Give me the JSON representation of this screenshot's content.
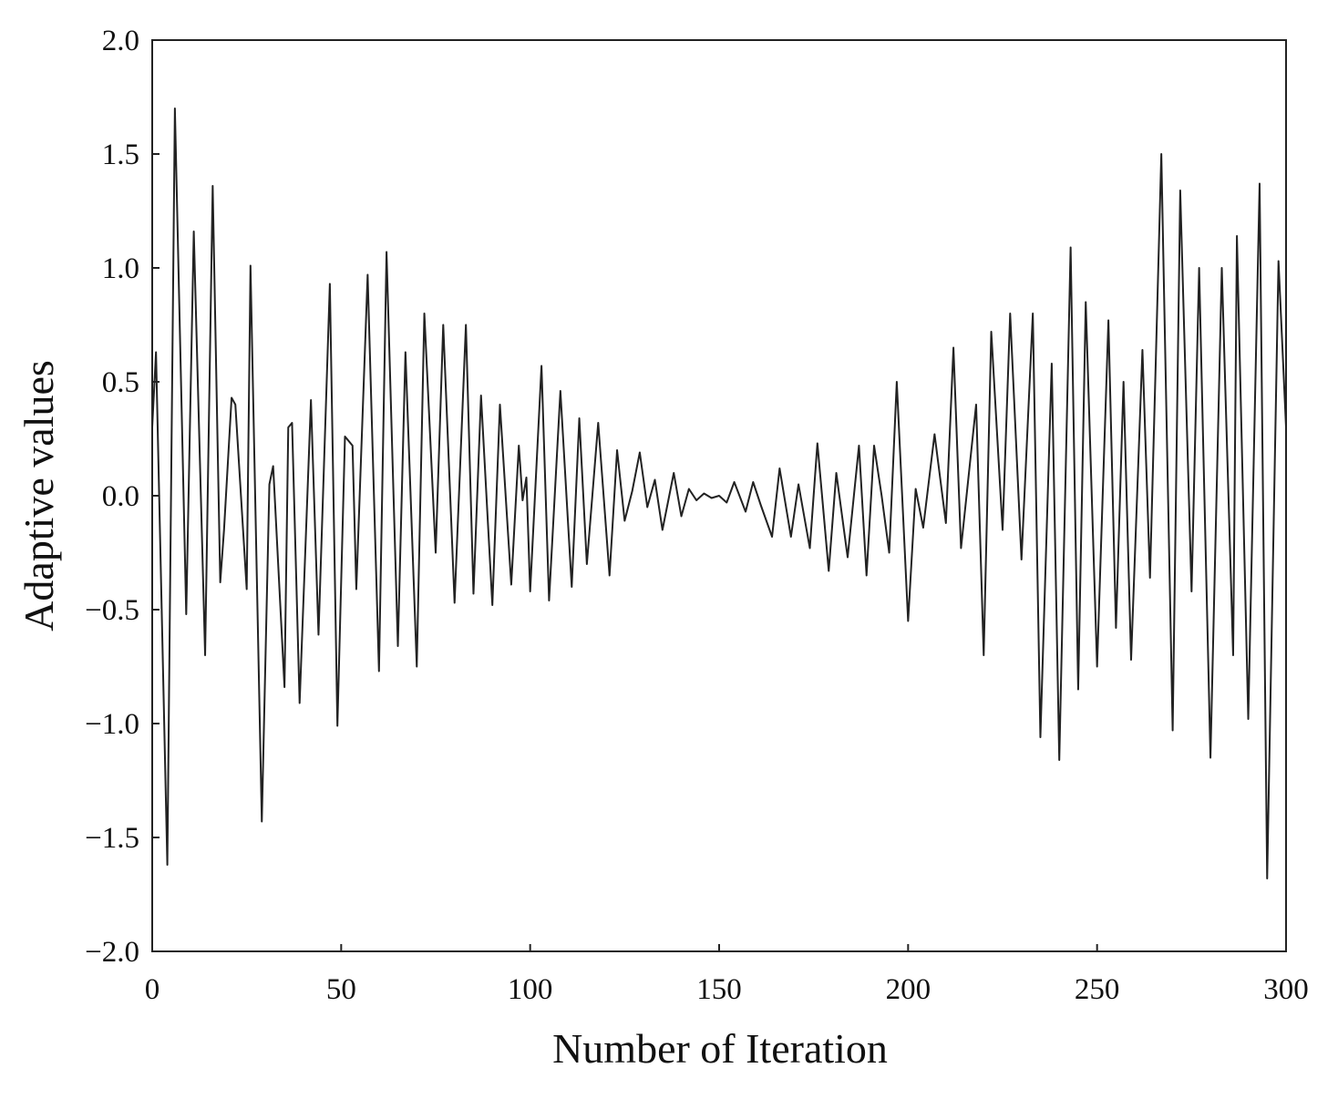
{
  "chart_data": {
    "type": "line",
    "x_label": "Number of Iteration",
    "y_label": "Adaptive values",
    "x": [
      0,
      1,
      4,
      6,
      9,
      11,
      14,
      16,
      18,
      19,
      21,
      22,
      25,
      26,
      29,
      31,
      32,
      35,
      36,
      37,
      39,
      42,
      44,
      47,
      49,
      51,
      53,
      54,
      57,
      60,
      62,
      65,
      67,
      70,
      72,
      75,
      77,
      80,
      83,
      85,
      87,
      90,
      92,
      95,
      97,
      98,
      99,
      100,
      103,
      105,
      108,
      111,
      113,
      115,
      118,
      121,
      123,
      125,
      127,
      129,
      131,
      133,
      135,
      138,
      140,
      142,
      144,
      146,
      148,
      150,
      152,
      154,
      157,
      159,
      161,
      164,
      166,
      169,
      171,
      174,
      176,
      179,
      181,
      184,
      187,
      189,
      191,
      193,
      195,
      197,
      200,
      202,
      204,
      207,
      210,
      212,
      214,
      218,
      220,
      222,
      225,
      227,
      230,
      233,
      235,
      238,
      240,
      243,
      245,
      247,
      250,
      253,
      255,
      257,
      259,
      262,
      264,
      267,
      270,
      272,
      275,
      277,
      280,
      283,
      286,
      287,
      290,
      293,
      295,
      298,
      300
    ],
    "values": [
      0.3,
      0.63,
      -1.62,
      1.7,
      -0.52,
      1.16,
      -0.7,
      1.36,
      -0.38,
      -0.15,
      0.43,
      0.4,
      -0.41,
      1.01,
      -1.43,
      0.05,
      0.13,
      -0.84,
      0.3,
      0.32,
      -0.91,
      0.42,
      -0.61,
      0.93,
      -1.01,
      0.26,
      0.22,
      -0.41,
      0.97,
      -0.77,
      1.07,
      -0.66,
      0.63,
      -0.75,
      0.8,
      -0.25,
      0.75,
      -0.47,
      0.75,
      -0.43,
      0.44,
      -0.48,
      0.4,
      -0.39,
      0.22,
      -0.02,
      0.08,
      -0.42,
      0.57,
      -0.46,
      0.46,
      -0.4,
      0.34,
      -0.3,
      0.32,
      -0.35,
      0.2,
      -0.11,
      0.02,
      0.19,
      -0.05,
      0.07,
      -0.15,
      0.1,
      -0.09,
      0.03,
      -0.02,
      0.01,
      -0.01,
      0.0,
      -0.03,
      0.06,
      -0.07,
      0.06,
      -0.04,
      -0.18,
      0.12,
      -0.18,
      0.05,
      -0.23,
      0.23,
      -0.33,
      0.1,
      -0.27,
      0.22,
      -0.35,
      0.22,
      0.0,
      -0.25,
      0.5,
      -0.55,
      0.03,
      -0.14,
      0.27,
      -0.12,
      0.65,
      -0.23,
      0.4,
      -0.7,
      0.72,
      -0.15,
      0.8,
      -0.28,
      0.8,
      -1.06,
      0.58,
      -1.16,
      1.09,
      -0.85,
      0.85,
      -0.75,
      0.77,
      -0.58,
      0.5,
      -0.72,
      0.64,
      -0.36,
      1.5,
      -1.03,
      1.34,
      -0.42,
      1.0,
      -1.15,
      1.0,
      -0.7,
      1.14,
      -0.98,
      1.37,
      -1.68,
      1.03,
      0.3
    ],
    "color": "#222222",
    "xlim": [
      0,
      300
    ],
    "xticks": [
      0,
      50,
      100,
      150,
      200,
      250,
      300
    ],
    "ylim": [
      -2,
      2
    ],
    "yticks": [
      {
        "value": -2,
        "label": "−2.0"
      },
      {
        "value": -1.5,
        "label": "−1.5"
      },
      {
        "value": -1,
        "label": "−1.0"
      },
      {
        "value": -0.5,
        "label": "−0.5"
      },
      {
        "value": 0,
        "label": "0.0"
      },
      {
        "value": 0.5,
        "label": "0.5"
      },
      {
        "value": 1,
        "label": "1.0"
      },
      {
        "value": 1.5,
        "label": "1.5"
      },
      {
        "value": 2,
        "label": "2.0"
      }
    ],
    "grid": false
  }
}
